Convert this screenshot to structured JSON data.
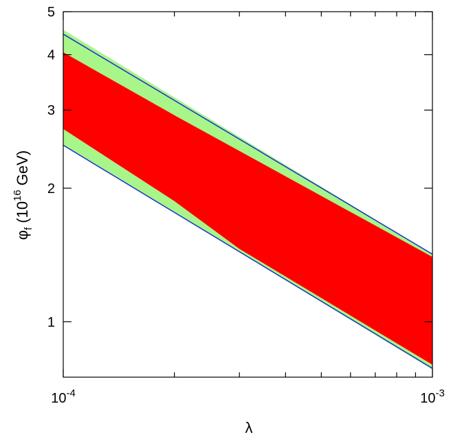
{
  "chart_data": {
    "type": "area",
    "x_scale": "log",
    "y_scale": "log",
    "xlim": [
      0.0001,
      0.001
    ],
    "ylim": [
      0.75,
      5
    ],
    "xlabel": "λ",
    "ylabel": {
      "symbol": "φ",
      "subscript": "f",
      "open": "(10",
      "exponent": "16",
      "unit": "GeV)"
    },
    "x_ticks": [
      {
        "value": 0.0001,
        "base": "10",
        "exp": "-4"
      },
      {
        "value": 0.001,
        "base": "10",
        "exp": "-3"
      }
    ],
    "x_minor_ticks": [
      0.0002,
      0.0003,
      0.0004,
      0.0005,
      0.0006,
      0.0007,
      0.0008,
      0.0009
    ],
    "y_ticks": [
      {
        "value": 1,
        "label": "1"
      },
      {
        "value": 2,
        "label": "2"
      },
      {
        "value": 3,
        "label": "3"
      },
      {
        "value": 4,
        "label": "4"
      },
      {
        "value": 5,
        "label": "5"
      }
    ],
    "green_band": {
      "color": "#a8f58a",
      "upper": [
        [
          0.0001,
          4.55
        ],
        [
          0.001,
          1.42
        ]
      ],
      "lower": [
        [
          0.0001,
          2.5
        ],
        [
          0.001,
          0.78
        ]
      ]
    },
    "red_band": {
      "color": "#ff0000",
      "upper": [
        [
          0.0001,
          4.05
        ],
        [
          0.0002,
          2.92
        ],
        [
          0.001,
          1.4
        ]
      ],
      "lower": [
        [
          0.0001,
          2.72
        ],
        [
          0.0002,
          1.87
        ],
        [
          0.0003,
          1.46
        ],
        [
          0.001,
          0.8
        ]
      ]
    },
    "blue_lines": {
      "color": "#1a2fd0",
      "lines": [
        [
          [
            0.0001,
            4.45
          ],
          [
            0.001,
            1.42
          ]
        ],
        [
          [
            0.0001,
            2.5
          ],
          [
            0.001,
            0.785
          ]
        ]
      ]
    }
  }
}
